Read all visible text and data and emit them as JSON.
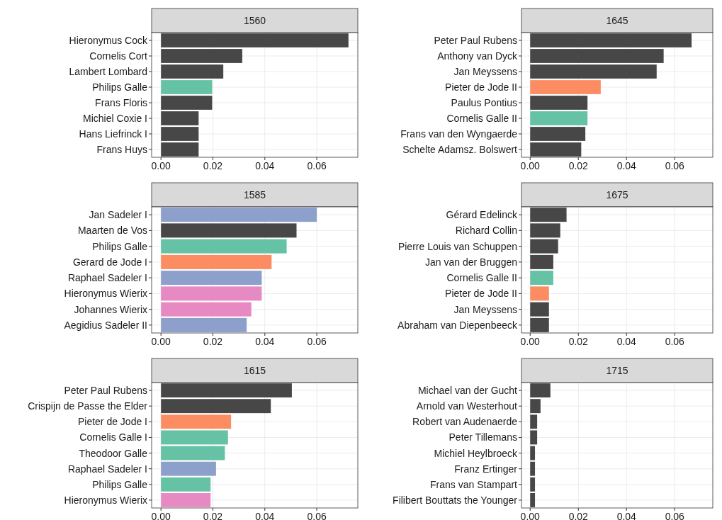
{
  "chart_data": [
    {
      "type": "bar",
      "orientation": "horizontal",
      "title": "1560",
      "categories": [
        "Hieronymus Cock",
        "Cornelis Cort",
        "Lambert Lombard",
        "Philips Galle",
        "Frans Floris",
        "Michiel Coxie I",
        "Hans Liefrinck I",
        "Frans Huys"
      ],
      "values": [
        0.0722,
        0.0313,
        0.024,
        0.0197,
        0.0197,
        0.0145,
        0.0145,
        0.0145
      ],
      "colors": [
        "#474747",
        "#474747",
        "#474747",
        "#66c2a5",
        "#474747",
        "#474747",
        "#474747",
        "#474747"
      ],
      "xlim": [
        -0.0036,
        0.0758
      ],
      "xticks": [
        {
          "value": 0,
          "label": "0.00"
        },
        {
          "value": 0.02,
          "label": "0.02"
        },
        {
          "value": 0.04,
          "label": "0.04"
        },
        {
          "value": 0.06,
          "label": "0.06"
        }
      ],
      "grid": true
    },
    {
      "type": "bar",
      "orientation": "horizontal",
      "title": "1645",
      "categories": [
        "Peter Paul Rubens",
        "Anthony van Dyck",
        "Jan Meyssens",
        "Pieter de Jode II",
        "Paulus Pontius",
        "Cornelis Galle II",
        "Frans van den Wyngaerde",
        "Schelte Adamsz. Bolswert"
      ],
      "values": [
        0.067,
        0.0554,
        0.0525,
        0.0293,
        0.0238,
        0.0238,
        0.0229,
        0.0212
      ],
      "colors": [
        "#474747",
        "#474747",
        "#474747",
        "#fc8d62",
        "#474747",
        "#66c2a5",
        "#474747",
        "#474747"
      ],
      "xlim": [
        -0.0036,
        0.0758
      ],
      "xticks": [
        {
          "value": 0,
          "label": "0.00"
        },
        {
          "value": 0.02,
          "label": "0.02"
        },
        {
          "value": 0.04,
          "label": "0.04"
        },
        {
          "value": 0.06,
          "label": "0.06"
        }
      ],
      "grid": true
    },
    {
      "type": "bar",
      "orientation": "horizontal",
      "title": "1585",
      "categories": [
        "Jan Sadeler I",
        "Maarten de Vos",
        "Philips Galle",
        "Gerard de Jode I",
        "Raphael Sadeler I",
        "Hieronymus Wierix",
        "Johannes Wierix",
        "Aegidius Sadeler II"
      ],
      "values": [
        0.06,
        0.0522,
        0.0484,
        0.0426,
        0.0388,
        0.0388,
        0.0348,
        0.033
      ],
      "colors": [
        "#8da0cb",
        "#474747",
        "#66c2a5",
        "#fc8d62",
        "#8da0cb",
        "#e78ac3",
        "#e78ac3",
        "#8da0cb"
      ],
      "xlim": [
        -0.0036,
        0.0758
      ],
      "xticks": [
        {
          "value": 0,
          "label": "0.00"
        },
        {
          "value": 0.02,
          "label": "0.02"
        },
        {
          "value": 0.04,
          "label": "0.04"
        },
        {
          "value": 0.06,
          "label": "0.06"
        }
      ],
      "grid": true
    },
    {
      "type": "bar",
      "orientation": "horizontal",
      "title": "1675",
      "categories": [
        "Gérard Edelinck",
        "Richard Collin",
        "Pierre Louis van Schuppen",
        "Jan van der Bruggen",
        "Cornelis Galle II",
        "Pieter de Jode II",
        "Jan Meyssens",
        "Abraham van Diepenbeeck"
      ],
      "values": [
        0.0151,
        0.0125,
        0.0116,
        0.0096,
        0.0096,
        0.0078,
        0.0078,
        0.0078
      ],
      "colors": [
        "#474747",
        "#474747",
        "#474747",
        "#474747",
        "#66c2a5",
        "#fc8d62",
        "#474747",
        "#474747"
      ],
      "xlim": [
        -0.0036,
        0.0758
      ],
      "xticks": [
        {
          "value": 0,
          "label": "0.00"
        },
        {
          "value": 0.02,
          "label": "0.02"
        },
        {
          "value": 0.04,
          "label": "0.04"
        },
        {
          "value": 0.06,
          "label": "0.06"
        }
      ],
      "grid": true
    },
    {
      "type": "bar",
      "orientation": "horizontal",
      "title": "1615",
      "categories": [
        "Peter Paul Rubens",
        "Crispijn de Passe the Elder",
        "Pieter de Jode I",
        "Cornelis Galle I",
        "Theodoor Galle",
        "Raphael Sadeler I",
        "Philips Galle",
        "Hieronymus Wierix"
      ],
      "values": [
        0.0504,
        0.0423,
        0.027,
        0.0258,
        0.0246,
        0.0212,
        0.0191,
        0.0191
      ],
      "colors": [
        "#474747",
        "#474747",
        "#fc8d62",
        "#66c2a5",
        "#66c2a5",
        "#8da0cb",
        "#66c2a5",
        "#e78ac3"
      ],
      "xlim": [
        -0.0036,
        0.0758
      ],
      "xticks": [
        {
          "value": 0,
          "label": "0.00"
        },
        {
          "value": 0.02,
          "label": "0.02"
        },
        {
          "value": 0.04,
          "label": "0.04"
        },
        {
          "value": 0.06,
          "label": "0.06"
        }
      ],
      "grid": true
    },
    {
      "type": "bar",
      "orientation": "horizontal",
      "title": "1715",
      "categories": [
        "Michael van der Gucht",
        "Arnold van Westerhout",
        "Robert van Audenaerde",
        "Peter Tillemans",
        "Michiel Heylbroeck",
        "Franz Ertinger",
        "Frans van Stampart",
        "Filibert Bouttats the Younger"
      ],
      "values": [
        0.0084,
        0.0043,
        0.0029,
        0.0029,
        0.002,
        0.002,
        0.002,
        0.002
      ],
      "colors": [
        "#474747",
        "#474747",
        "#474747",
        "#474747",
        "#474747",
        "#474747",
        "#474747",
        "#474747"
      ],
      "xlim": [
        -0.0036,
        0.0758
      ],
      "xticks": [
        {
          "value": 0,
          "label": "0.00"
        },
        {
          "value": 0.02,
          "label": "0.02"
        },
        {
          "value": 0.04,
          "label": "0.04"
        },
        {
          "value": 0.06,
          "label": "0.06"
        }
      ],
      "grid": true
    }
  ]
}
